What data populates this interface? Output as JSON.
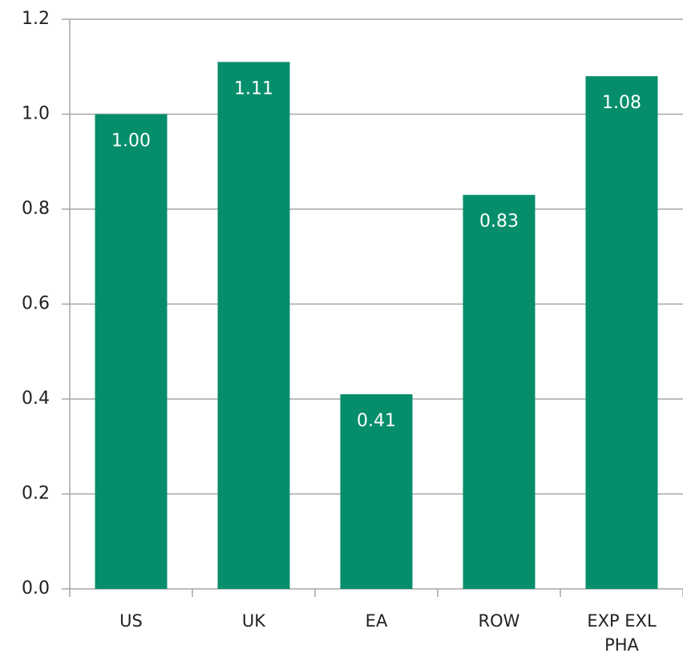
{
  "chart_data": {
    "type": "bar",
    "categories": [
      "US",
      "UK",
      "EA",
      "ROW",
      "EXP EXL PHA"
    ],
    "values": [
      1.0,
      1.11,
      0.41,
      0.83,
      1.08
    ],
    "value_labels": [
      "1.00",
      "1.11",
      "0.41",
      "0.83",
      "1.08"
    ],
    "color": "#068e6c",
    "ylim": [
      0,
      1.2
    ],
    "yticks": [
      {
        "value": 0,
        "label": "0.0"
      },
      0.2,
      0.4,
      0.6,
      0.8,
      {
        "value": 1,
        "label": "1.0"
      },
      1.2
    ],
    "grid": true
  }
}
